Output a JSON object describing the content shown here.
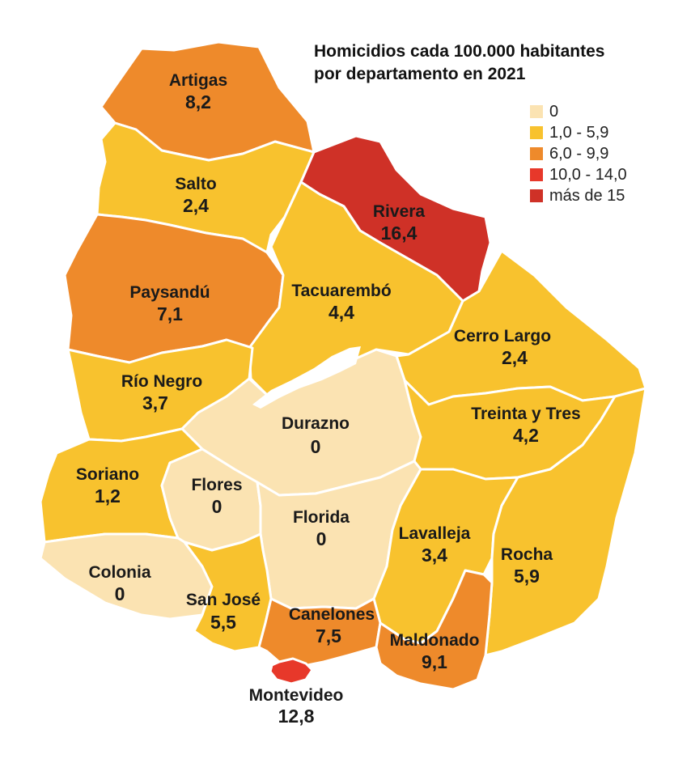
{
  "map": {
    "title_line1": "Homicidios cada 100.000 habitantes",
    "title_line2": "por departamento en 2021",
    "legend": [
      {
        "label": "0",
        "color": "#fbe3b2"
      },
      {
        "label": "1,0 - 5,9",
        "color": "#f8c22e"
      },
      {
        "label": "6,0 - 9,9",
        "color": "#ee8a2b"
      },
      {
        "label": "10,0 - 14,0",
        "color": "#e7382a"
      },
      {
        "label": "más de 15",
        "color": "#cf3127"
      }
    ],
    "departments": [
      {
        "id": "artigas",
        "name": "Artigas",
        "value": "8,2",
        "color": "#ee8a2b"
      },
      {
        "id": "salto",
        "name": "Salto",
        "value": "2,4",
        "color": "#f8c22e"
      },
      {
        "id": "rivera",
        "name": "Rivera",
        "value": "16,4",
        "color": "#cf3127"
      },
      {
        "id": "paysandu",
        "name": "Paysandú",
        "value": "7,1",
        "color": "#ee8a2b"
      },
      {
        "id": "tacuarembo",
        "name": "Tacuarembó",
        "value": "4,4",
        "color": "#f8c22e"
      },
      {
        "id": "cerro-largo",
        "name": "Cerro Largo",
        "value": "2,4",
        "color": "#f8c22e"
      },
      {
        "id": "rio-negro",
        "name": "Río Negro",
        "value": "3,7",
        "color": "#f8c22e"
      },
      {
        "id": "durazno",
        "name": "Durazno",
        "value": "0",
        "color": "#fbe3b2"
      },
      {
        "id": "treinta-y-tres",
        "name": "Treinta y Tres",
        "value": "4,2",
        "color": "#f8c22e"
      },
      {
        "id": "soriano",
        "name": "Soriano",
        "value": "1,2",
        "color": "#f8c22e"
      },
      {
        "id": "flores",
        "name": "Flores",
        "value": "0",
        "color": "#fbe3b2"
      },
      {
        "id": "florida",
        "name": "Florida",
        "value": "0",
        "color": "#fbe3b2"
      },
      {
        "id": "lavalleja",
        "name": "Lavalleja",
        "value": "3,4",
        "color": "#f8c22e"
      },
      {
        "id": "rocha",
        "name": "Rocha",
        "value": "5,9",
        "color": "#f8c22e"
      },
      {
        "id": "colonia",
        "name": "Colonia",
        "value": "0",
        "color": "#fbe3b2"
      },
      {
        "id": "san-jose",
        "name": "San José",
        "value": "5,5",
        "color": "#f8c22e"
      },
      {
        "id": "canelones",
        "name": "Canelones",
        "value": "7,5",
        "color": "#ee8a2b"
      },
      {
        "id": "maldonado",
        "name": "Maldonado",
        "value": "9,1",
        "color": "#ee8a2b"
      },
      {
        "id": "montevideo",
        "name": "Montevideo",
        "value": "12,8",
        "color": "#e7382a"
      }
    ]
  }
}
